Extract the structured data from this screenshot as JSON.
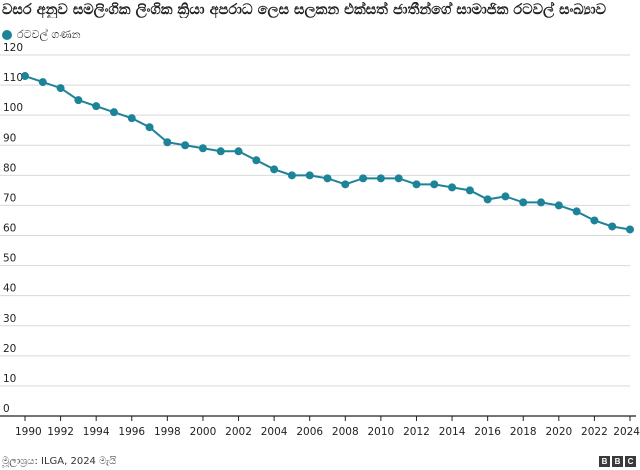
{
  "title": "වසර අනුව සමලිංගික ලිංගික ක්‍රියා අපරාධ ලෙස සලකන එක්සත් ජාතීන්ගේ සාමාජික රටවල් සංඛ්‍යාව",
  "legend_label": "රටවල් ගණන",
  "source": "මූලාශ්‍රය: ILGA, 2024 මැයි",
  "logo_letters": [
    "B",
    "B",
    "C"
  ],
  "colors": {
    "series": "#1c8399",
    "grid": "#d9d9d9",
    "axis": "#222222"
  },
  "chart_data": {
    "type": "line",
    "title": "වසර අනුව සමලිංගික ලිංගික ක්‍රියා අපරාධ ලෙස සලකන එක්සත් ජාතීන්ගේ සාමාජික රටවල් සංඛ්‍යාව",
    "xlabel": "",
    "ylabel": "",
    "xlim": [
      1990,
      2024
    ],
    "ylim": [
      0,
      120
    ],
    "grid": true,
    "legend_position": "top-left",
    "x_ticks": [
      1990,
      1992,
      1994,
      1996,
      1998,
      2000,
      2002,
      2004,
      2006,
      2008,
      2010,
      2012,
      2014,
      2016,
      2018,
      2020,
      2022,
      2024
    ],
    "y_ticks": [
      0,
      10,
      20,
      30,
      40,
      50,
      60,
      70,
      80,
      90,
      100,
      110,
      120
    ],
    "series": [
      {
        "name": "රටවල් ගණන",
        "x": [
          1990,
          1991,
          1992,
          1993,
          1994,
          1995,
          1996,
          1997,
          1998,
          1999,
          2000,
          2001,
          2002,
          2003,
          2004,
          2005,
          2006,
          2007,
          2008,
          2009,
          2010,
          2011,
          2012,
          2013,
          2014,
          2015,
          2016,
          2017,
          2018,
          2019,
          2020,
          2021,
          2022,
          2023,
          2024
        ],
        "y": [
          113,
          111,
          109,
          105,
          103,
          101,
          99,
          96,
          91,
          90,
          89,
          88,
          88,
          85,
          82,
          80,
          80,
          79,
          77,
          79,
          79,
          79,
          77,
          77,
          76,
          75,
          72,
          73,
          71,
          71,
          70,
          68,
          65,
          63,
          62
        ]
      }
    ]
  }
}
